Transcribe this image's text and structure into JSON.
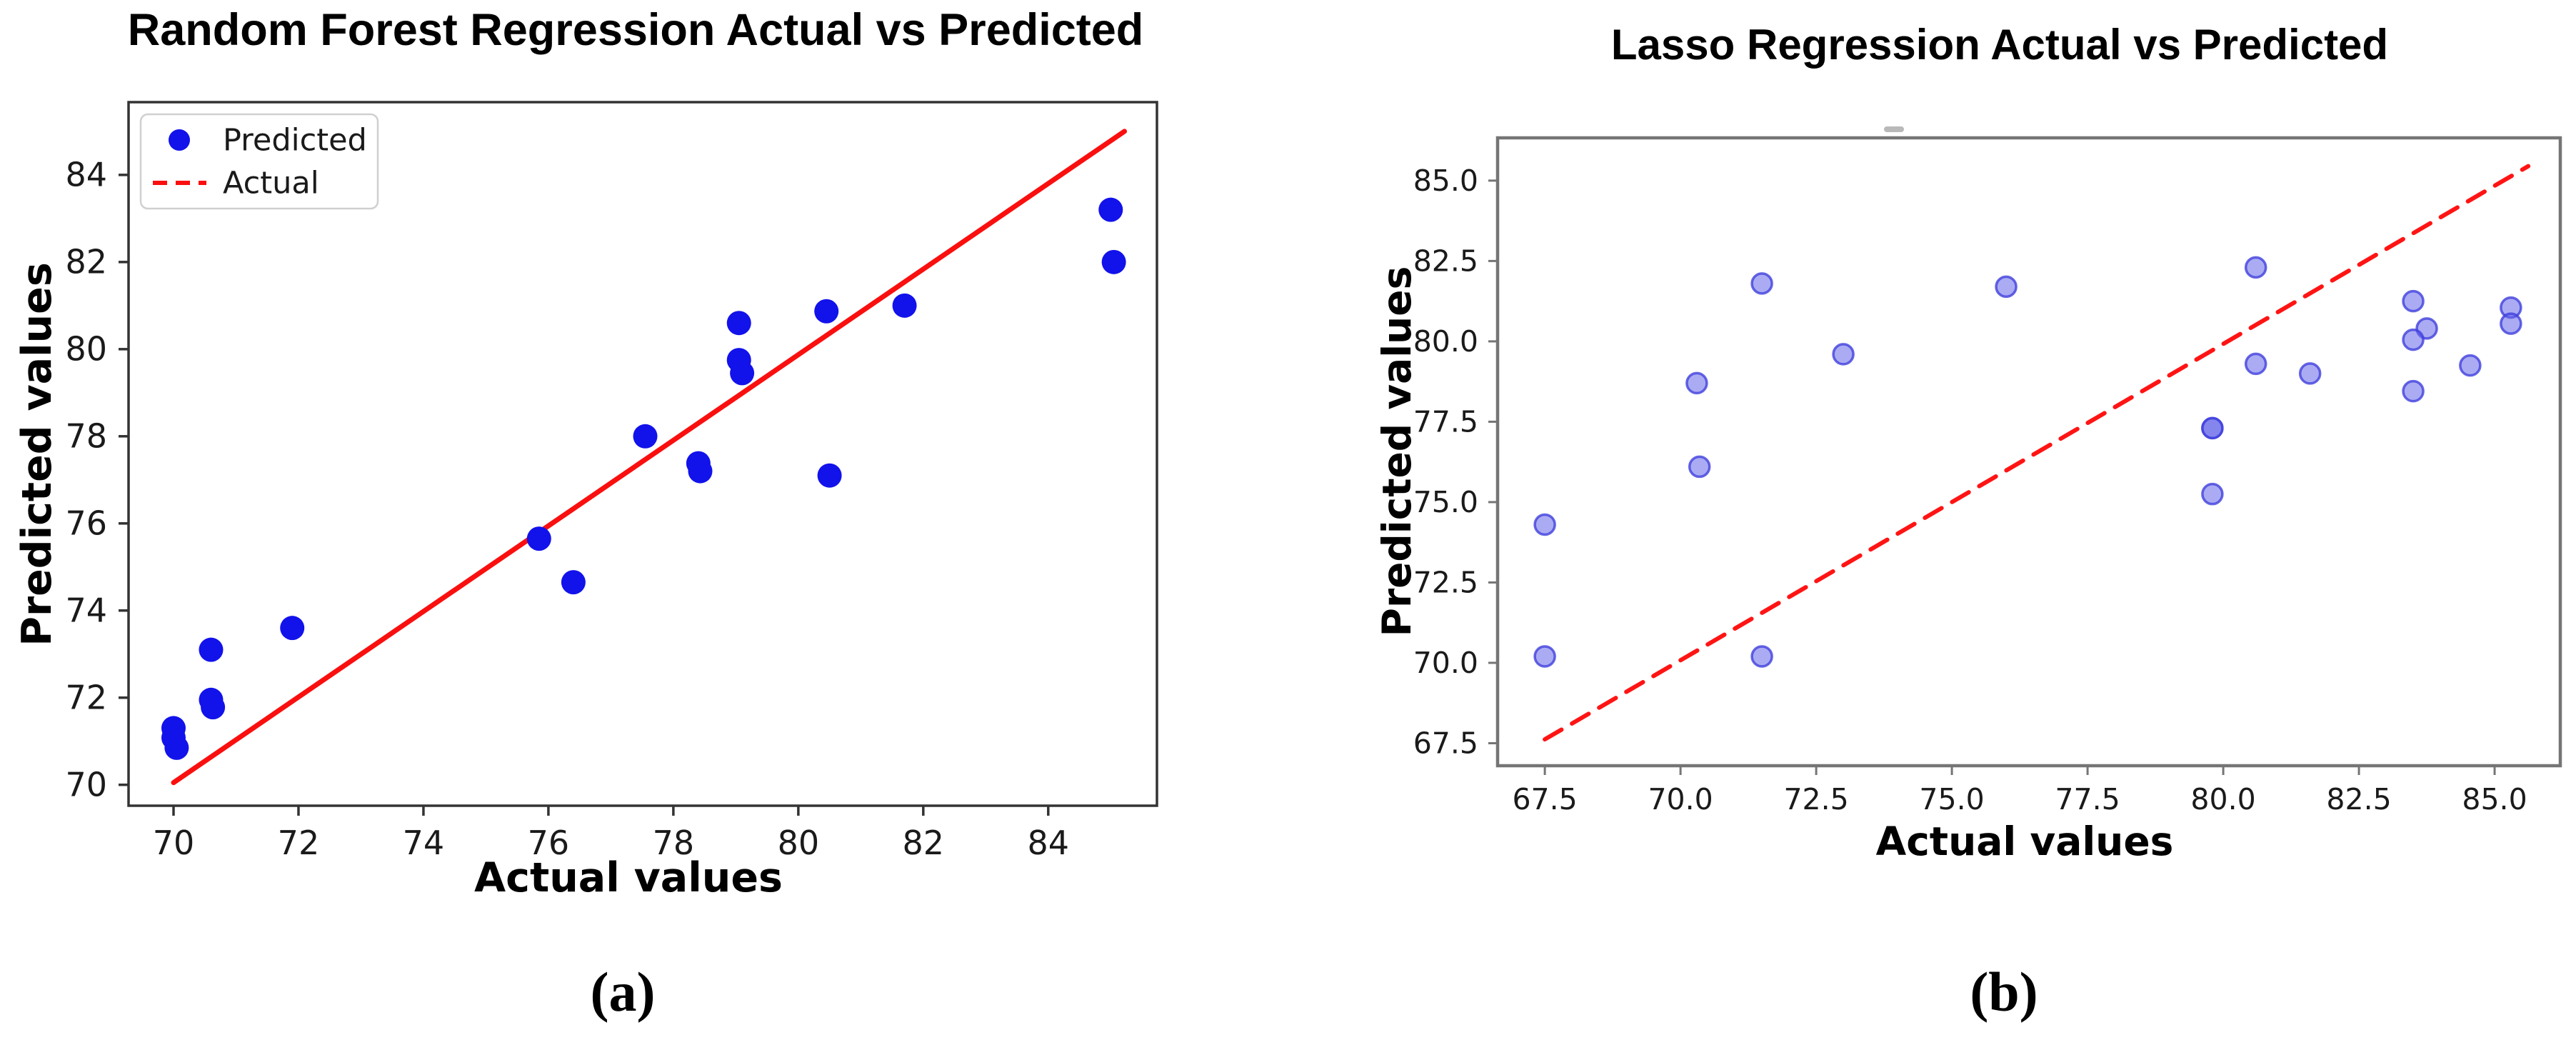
{
  "captions": {
    "a": "(a)",
    "b": "(b)"
  },
  "chart_data": [
    {
      "id": "a",
      "type": "scatter",
      "title": "Random Forest Regression Actual vs Predicted",
      "xlabel": "Actual values",
      "ylabel": "Predicted values",
      "xlim": [
        69.28,
        85.74
      ],
      "ylim": [
        69.52,
        85.67
      ],
      "xticks": [
        70,
        72,
        74,
        76,
        78,
        80,
        82,
        84
      ],
      "xtick_labels": [
        "70",
        "72",
        "74",
        "76",
        "78",
        "80",
        "82",
        "84"
      ],
      "yticks": [
        70,
        72,
        74,
        76,
        78,
        80,
        82,
        84
      ],
      "ytick_labels": [
        "70",
        "72",
        "74",
        "76",
        "78",
        "80",
        "82",
        "84"
      ],
      "grid": false,
      "legend_position": "upper-left",
      "legend": [
        {
          "label": "Predicted",
          "marker": "dot",
          "color": "#1212eb"
        },
        {
          "label": "Actual",
          "marker": "dashed-line",
          "color": "#fa0f0f"
        }
      ],
      "identity_line": {
        "x1": 70.0,
        "y1": 70.05,
        "x2": 85.22,
        "y2": 85.0,
        "style": "solid",
        "color": "#fa0f0f",
        "width": 7
      },
      "marker_style": {
        "fill": "#1212eb",
        "fill_opacity": 1,
        "stroke": "none",
        "stroke_opacity": 0,
        "stroke_width": 0,
        "radius": 17
      },
      "border_color": "#333333",
      "points": [
        [
          70.0,
          71.3
        ],
        [
          70.0,
          71.08
        ],
        [
          70.05,
          70.85
        ],
        [
          70.6,
          73.1
        ],
        [
          70.6,
          71.95
        ],
        [
          70.63,
          71.78
        ],
        [
          71.9,
          73.6
        ],
        [
          75.85,
          75.65
        ],
        [
          76.4,
          74.65
        ],
        [
          77.55,
          78.0
        ],
        [
          78.4,
          77.38
        ],
        [
          78.43,
          77.2
        ],
        [
          79.05,
          80.6
        ],
        [
          79.05,
          79.75
        ],
        [
          79.1,
          79.45
        ],
        [
          80.45,
          80.87
        ],
        [
          80.5,
          77.1
        ],
        [
          81.7,
          81.0
        ],
        [
          85.0,
          83.2
        ],
        [
          85.05,
          82.0
        ]
      ]
    },
    {
      "id": "b",
      "type": "scatter",
      "title": "Lasso Regression Actual vs Predicted",
      "xlabel": "Actual values",
      "ylabel": "Predicted values",
      "xlim": [
        66.63,
        86.21
      ],
      "ylim": [
        66.8,
        86.33
      ],
      "xticks": [
        67.5,
        70.0,
        72.5,
        75.0,
        77.5,
        80.0,
        82.5,
        85.0
      ],
      "xtick_labels": [
        "67.5",
        "70.0",
        "72.5",
        "75.0",
        "77.5",
        "80.0",
        "82.5",
        "85.0"
      ],
      "yticks": [
        67.5,
        70.0,
        72.5,
        75.0,
        77.5,
        80.0,
        82.5,
        85.0
      ],
      "ytick_labels": [
        "67.5",
        "70.0",
        "72.5",
        "75.0",
        "77.5",
        "80.0",
        "82.5",
        "85.0"
      ],
      "grid": false,
      "legend_position": "none",
      "legend": [],
      "identity_line": {
        "x1": 67.5,
        "y1": 67.62,
        "x2": 85.62,
        "y2": 85.45,
        "style": "dashed",
        "color": "#ff1414",
        "width": 6
      },
      "marker_style": {
        "fill": "#6666ea",
        "fill_opacity": 0.55,
        "stroke": "#4040dd",
        "stroke_opacity": 0.8,
        "stroke_width": 3.5,
        "radius": 14
      },
      "border_color": "#757575",
      "points": [
        [
          67.5,
          74.3
        ],
        [
          67.5,
          70.2
        ],
        [
          70.3,
          78.7
        ],
        [
          70.35,
          76.1
        ],
        [
          71.5,
          81.8
        ],
        [
          71.5,
          70.2
        ],
        [
          73.0,
          79.6
        ],
        [
          76.0,
          81.7
        ],
        [
          79.8,
          77.3
        ],
        [
          79.8,
          77.3
        ],
        [
          79.8,
          75.25
        ],
        [
          80.6,
          82.3
        ],
        [
          80.6,
          79.3
        ],
        [
          81.6,
          79.0
        ],
        [
          83.5,
          81.25
        ],
        [
          83.75,
          80.4
        ],
        [
          83.5,
          80.05
        ],
        [
          83.5,
          78.45
        ],
        [
          84.55,
          79.25
        ],
        [
          85.3,
          81.05
        ],
        [
          85.3,
          80.55
        ]
      ]
    }
  ]
}
